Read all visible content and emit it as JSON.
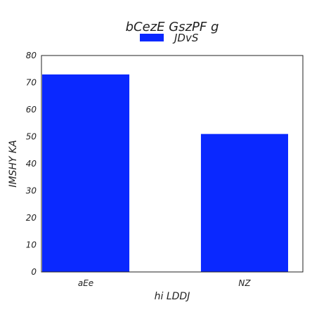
{
  "chart_data": {
    "type": "bar",
    "title": "bCezE GszPF g",
    "xlabel": "hi LDDJ",
    "ylabel": "IMSHY KA",
    "categories": [
      "aEe",
      "NZ"
    ],
    "series": [
      {
        "name": "JDvS",
        "values": [
          73,
          51
        ],
        "color": "#0a28ff"
      }
    ],
    "ylim": [
      0,
      80
    ],
    "yticks": [
      0,
      10,
      20,
      30,
      40,
      50,
      60,
      70,
      80
    ],
    "grid": false,
    "legend": "top-center"
  }
}
